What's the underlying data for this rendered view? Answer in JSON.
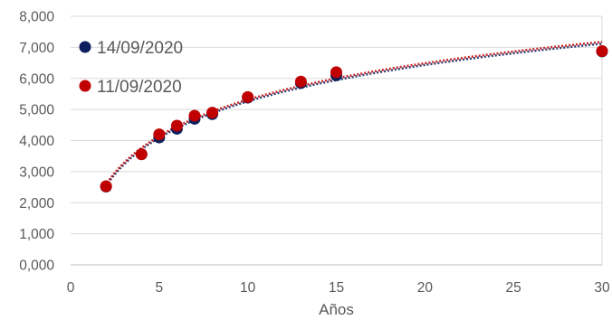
{
  "chart_data": {
    "type": "scatter",
    "title": "",
    "xlabel": "Años",
    "ylabel": "",
    "xlim": [
      0,
      30
    ],
    "ylim": [
      0,
      8000
    ],
    "x_ticks": [
      0,
      5,
      10,
      15,
      20,
      25,
      30
    ],
    "y_ticks": [
      0,
      1000,
      2000,
      3000,
      4000,
      5000,
      6000,
      7000,
      8000
    ],
    "x_tick_labels": [
      "0",
      "5",
      "10",
      "15",
      "20",
      "25",
      "30"
    ],
    "y_tick_labels": [
      "0,000",
      "1,000",
      "2,000",
      "3,000",
      "4,000",
      "5,000",
      "6,000",
      "7,000",
      "8,000"
    ],
    "grid": "horizontal",
    "legend_position": "top-left",
    "series": [
      {
        "name": "14/09/2020",
        "color": "#0d1f5c",
        "trendline": "logarithmic",
        "x": [
          2,
          4,
          5,
          6,
          7,
          8,
          10,
          13,
          15,
          30
        ],
        "y": [
          2520,
          3560,
          4100,
          4380,
          4700,
          4850,
          5380,
          5850,
          6100,
          6870
        ]
      },
      {
        "name": "11/09/2020",
        "color": "#c00000",
        "trendline": "logarithmic",
        "x": [
          2,
          4,
          5,
          6,
          7,
          8,
          10,
          13,
          15,
          30
        ],
        "y": [
          2530,
          3560,
          4200,
          4480,
          4800,
          4900,
          5400,
          5900,
          6200,
          6880
        ]
      }
    ]
  }
}
